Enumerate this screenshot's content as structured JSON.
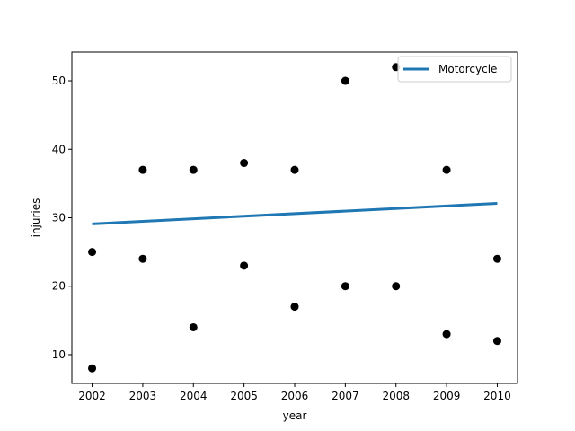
{
  "chart_data": {
    "type": "scatter",
    "title": "",
    "xlabel": "year",
    "ylabel": "injuries",
    "xlim": [
      2001.6,
      2010.4
    ],
    "ylim": [
      5.8,
      54.2
    ],
    "x_ticks": [
      2002,
      2003,
      2004,
      2005,
      2006,
      2007,
      2008,
      2009,
      2010
    ],
    "y_ticks": [
      10,
      20,
      30,
      40,
      50
    ],
    "grid": false,
    "legend": {
      "position": "top-right"
    },
    "series": [
      {
        "kind": "points",
        "color": "#000000",
        "points": [
          [
            2002,
            25
          ],
          [
            2002,
            8
          ],
          [
            2003,
            37
          ],
          [
            2003,
            24
          ],
          [
            2004,
            37
          ],
          [
            2004,
            14
          ],
          [
            2005,
            38
          ],
          [
            2005,
            23
          ],
          [
            2006,
            37
          ],
          [
            2006,
            17
          ],
          [
            2007,
            50
          ],
          [
            2007,
            20
          ],
          [
            2008,
            52
          ],
          [
            2008,
            20
          ],
          [
            2009,
            37
          ],
          [
            2009,
            13
          ],
          [
            2010,
            24
          ],
          [
            2010,
            12
          ]
        ]
      },
      {
        "kind": "line",
        "name": "Motorcycle",
        "color": "#1f77b4",
        "points": [
          [
            2002,
            29.1
          ],
          [
            2010,
            32.1
          ]
        ]
      }
    ]
  }
}
